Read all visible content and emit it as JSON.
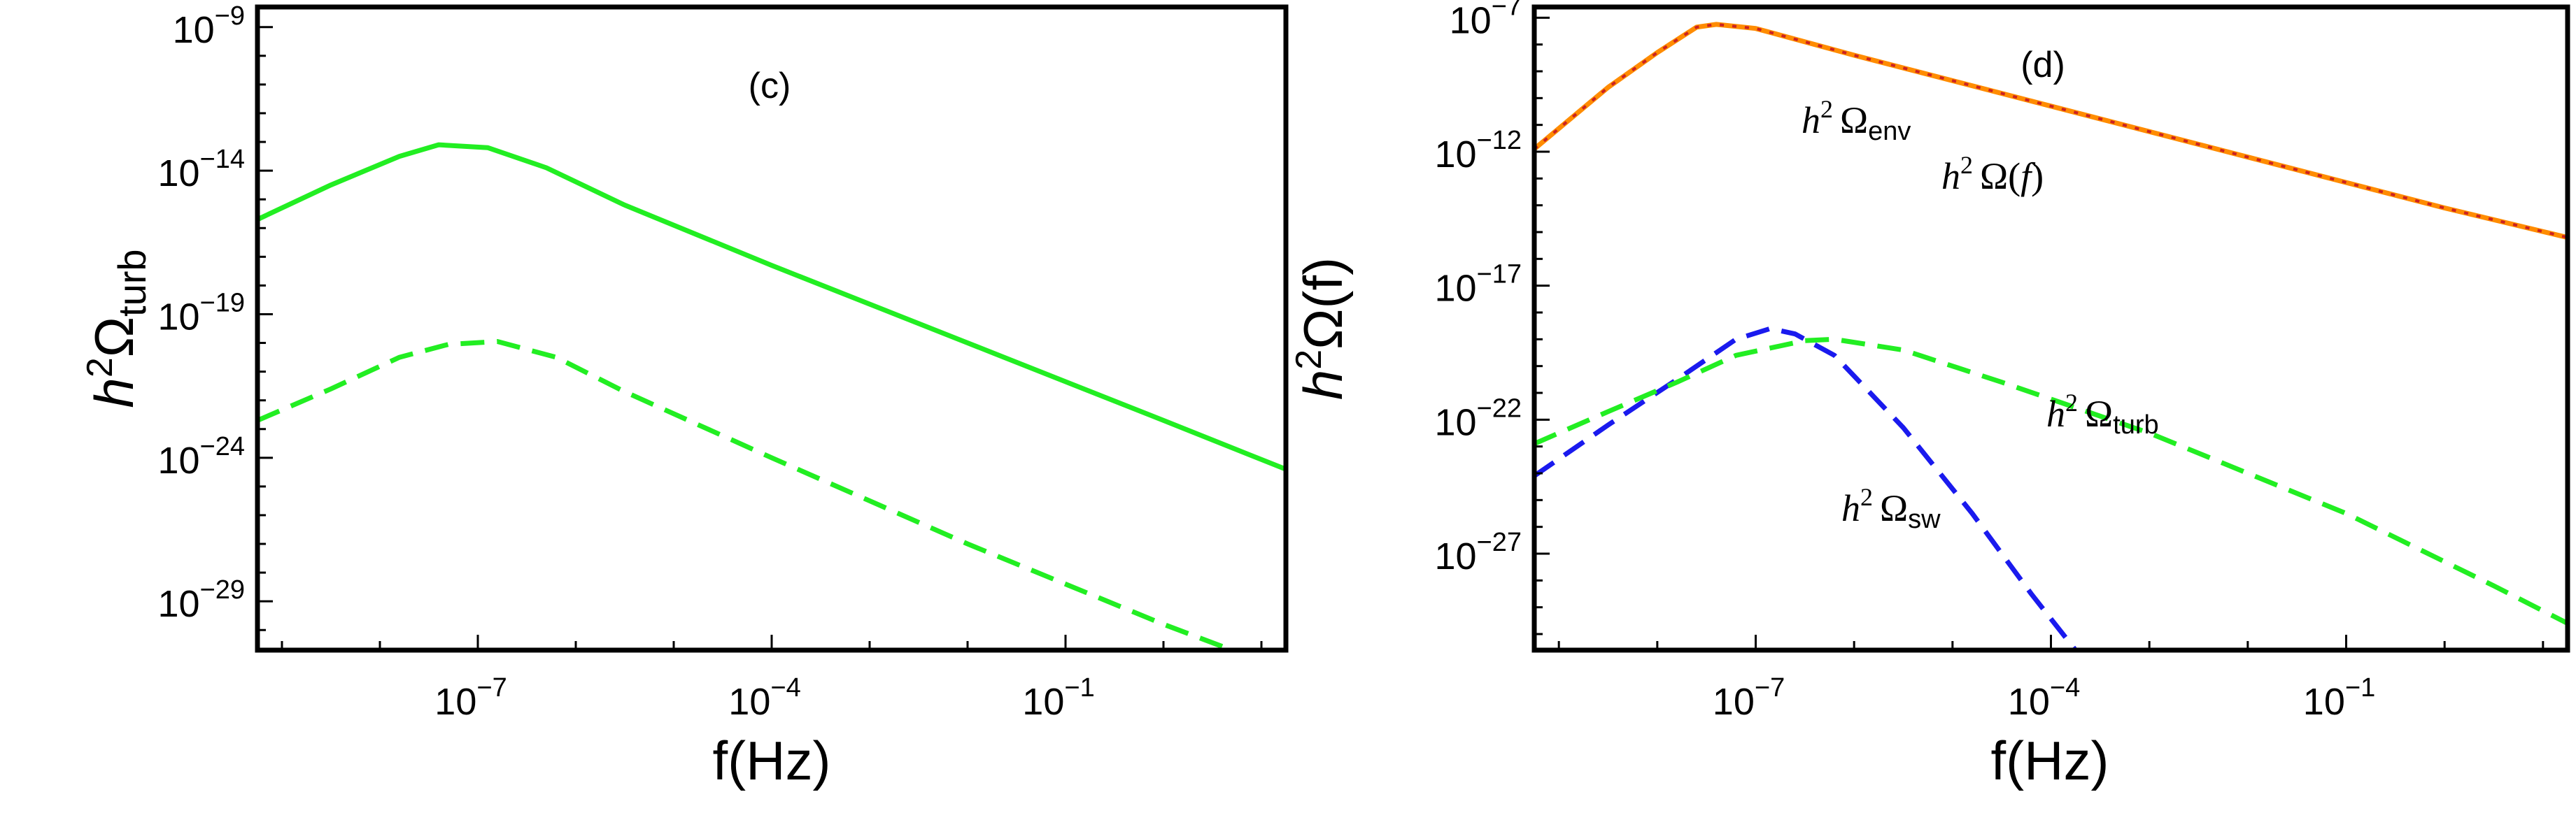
{
  "chart_data": [
    {
      "type": "line",
      "panel_label": "(c)",
      "xlabel": "f(Hz)",
      "ylabel": {
        "h": "h",
        "sup": "2",
        "base": "Ω",
        "sub": "turb"
      },
      "x_scale": "log",
      "y_scale": "log",
      "xlim_log10": [
        -9.25,
        1.25
      ],
      "ylim_log10": [
        -30.7,
        -8.3
      ],
      "x_ticks": [
        {
          "log10": -7,
          "base": "10",
          "exp": "−7"
        },
        {
          "log10": -4,
          "base": "10",
          "exp": "−4"
        },
        {
          "log10": -1,
          "base": "10",
          "exp": "−1"
        }
      ],
      "y_ticks": [
        {
          "log10": -9,
          "base": "10",
          "exp": "−9"
        },
        {
          "log10": -14,
          "base": "10",
          "exp": "−14"
        },
        {
          "log10": -19,
          "base": "10",
          "exp": "−19"
        },
        {
          "log10": -24,
          "base": "10",
          "exp": "−24"
        },
        {
          "log10": -29,
          "base": "10",
          "exp": "−29"
        }
      ],
      "grid": false,
      "series": [
        {
          "color": "#22ee22",
          "dash": "solid",
          "points_log10": [
            [
              -9.25,
              -15.7
            ],
            [
              -8.5,
              -14.5
            ],
            [
              -7.8,
              -13.5
            ],
            [
              -7.4,
              -13.1
            ],
            [
              -6.9,
              -13.2
            ],
            [
              -6.3,
              -13.9
            ],
            [
              -5.5,
              -15.2
            ],
            [
              -4.0,
              -17.3
            ],
            [
              -2.0,
              -20.0
            ],
            [
              0.0,
              -22.7
            ],
            [
              1.25,
              -24.4
            ]
          ]
        },
        {
          "color": "#22ee22",
          "dash": "dashed",
          "points_log10": [
            [
              -9.25,
              -22.7
            ],
            [
              -8.5,
              -21.6
            ],
            [
              -7.8,
              -20.5
            ],
            [
              -7.3,
              -20.05
            ],
            [
              -6.8,
              -19.95
            ],
            [
              -6.2,
              -20.5
            ],
            [
              -5.5,
              -21.7
            ],
            [
              -4.0,
              -24.0
            ],
            [
              -2.0,
              -27.0
            ],
            [
              0.0,
              -29.8
            ],
            [
              0.7,
              -30.7
            ]
          ]
        }
      ]
    },
    {
      "type": "line",
      "panel_label": "(d)",
      "xlabel": "f(Hz)",
      "ylabel": {
        "h": "h",
        "sup": "2",
        "base": "Ω(f)"
      },
      "x_scale": "log",
      "y_scale": "log",
      "xlim_log10": [
        -9.25,
        1.25
      ],
      "ylim_log10": [
        -30.6,
        -6.6
      ],
      "x_ticks": [
        {
          "log10": -7,
          "base": "10",
          "exp": "−7"
        },
        {
          "log10": -4,
          "base": "10",
          "exp": "−4"
        },
        {
          "log10": -1,
          "base": "10",
          "exp": "−1"
        }
      ],
      "y_ticks": [
        {
          "log10": -7,
          "base": "10",
          "exp": "−7"
        },
        {
          "log10": -12,
          "base": "10",
          "exp": "−12"
        },
        {
          "log10": -17,
          "base": "10",
          "exp": "−17"
        },
        {
          "log10": -22,
          "base": "10",
          "exp": "−22"
        },
        {
          "log10": -27,
          "base": "10",
          "exp": "−27"
        }
      ],
      "grid": false,
      "series": [
        {
          "label": {
            "h": "h",
            "sup": "2",
            "base": "Ω",
            "sub": "env"
          },
          "color": "#ff8c00",
          "dash": "solid",
          "points_log10": [
            [
              -9.25,
              -11.9
            ],
            [
              -8.5,
              -9.6
            ],
            [
              -8.0,
              -8.3
            ],
            [
              -7.6,
              -7.35
            ],
            [
              -7.4,
              -7.25
            ],
            [
              -7.0,
              -7.4
            ],
            [
              -6.0,
              -8.4
            ],
            [
              -4.0,
              -10.3
            ],
            [
              -2.0,
              -12.2
            ],
            [
              0.0,
              -14.1
            ],
            [
              1.25,
              -15.2
            ]
          ]
        },
        {
          "label": {
            "h": "h",
            "sup": "2",
            "base": "Ω(",
            "it": "f",
            "tail": ")"
          },
          "color": "#cc2222",
          "dash": "dotted",
          "points_log10": [
            [
              -9.25,
              -11.9
            ],
            [
              -8.5,
              -9.6
            ],
            [
              -8.0,
              -8.3
            ],
            [
              -7.6,
              -7.35
            ],
            [
              -7.4,
              -7.25
            ],
            [
              -7.0,
              -7.4
            ],
            [
              -6.0,
              -8.4
            ],
            [
              -4.0,
              -10.3
            ],
            [
              -2.0,
              -12.2
            ],
            [
              0.0,
              -14.1
            ],
            [
              1.25,
              -15.2
            ]
          ]
        },
        {
          "label": {
            "h": "h",
            "sup": "2",
            "base": "Ω",
            "sub": "sw"
          },
          "color": "#1a1aee",
          "dash": "dashed",
          "points_log10": [
            [
              -9.25,
              -24.1
            ],
            [
              -8.5,
              -22.2
            ],
            [
              -7.8,
              -20.5
            ],
            [
              -7.2,
              -19.0
            ],
            [
              -6.85,
              -18.6
            ],
            [
              -6.6,
              -18.8
            ],
            [
              -6.2,
              -19.6
            ],
            [
              -5.5,
              -22.3
            ],
            [
              -4.8,
              -25.5
            ],
            [
              -4.2,
              -28.5
            ],
            [
              -3.75,
              -30.6
            ]
          ]
        },
        {
          "label": {
            "h": "h",
            "sup": "2",
            "base": "Ω",
            "sub": "turb"
          },
          "color": "#22ee22",
          "dash": "dashed",
          "points_log10": [
            [
              -9.25,
              -22.9
            ],
            [
              -8.5,
              -21.7
            ],
            [
              -7.8,
              -20.6
            ],
            [
              -7.2,
              -19.6
            ],
            [
              -6.5,
              -19.05
            ],
            [
              -6.2,
              -19.0
            ],
            [
              -5.5,
              -19.4
            ],
            [
              -4.5,
              -20.6
            ],
            [
              -3.0,
              -22.5
            ],
            [
              -1.0,
              -25.5
            ],
            [
              0.5,
              -28.2
            ],
            [
              1.25,
              -29.6
            ]
          ]
        }
      ]
    }
  ]
}
